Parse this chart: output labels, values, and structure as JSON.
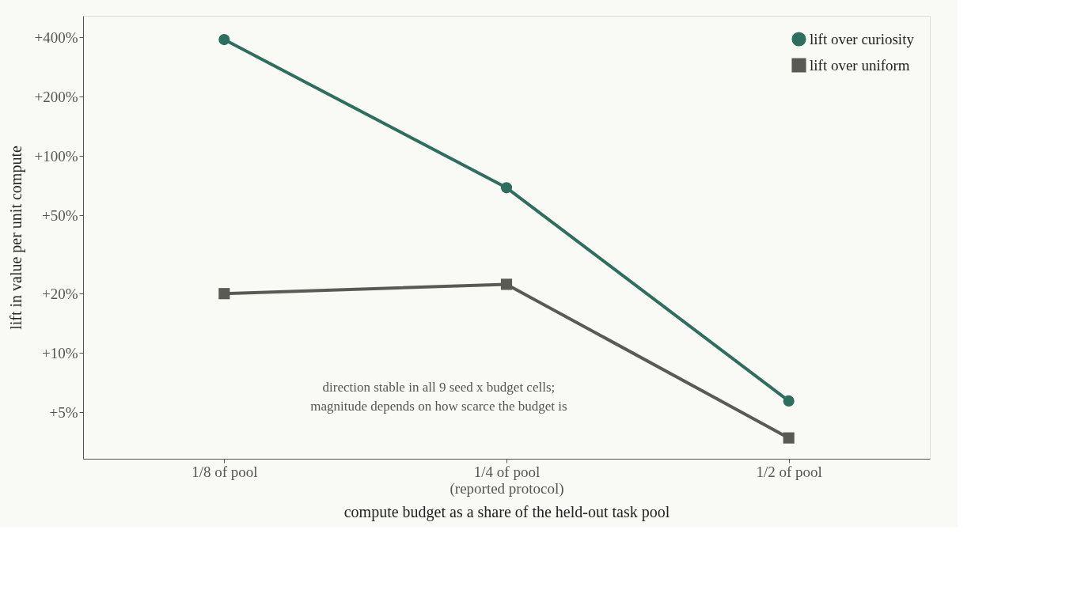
{
  "chart_data": {
    "type": "line",
    "xlabel": "compute budget as a share of the held-out task pool",
    "ylabel": "lift in value per unit compute",
    "categories": [
      "1/8 of pool",
      "1/4 of pool\n(reported protocol)",
      "1/2 of pool"
    ],
    "log": "y",
    "ylim": [
      2.9,
      515
    ],
    "yticks": [
      {
        "value": 5,
        "label": "+5%"
      },
      {
        "value": 10,
        "label": "+10%"
      },
      {
        "value": 20,
        "label": "+20%"
      },
      {
        "value": 50,
        "label": "+50%"
      },
      {
        "value": 100,
        "label": "+100%"
      },
      {
        "value": 200,
        "label": "+200%"
      },
      {
        "value": 400,
        "label": "+400%"
      }
    ],
    "series": [
      {
        "name": "lift over curiosity",
        "color": "#2e6e5e",
        "marker": "circle",
        "values": [
          390,
          69,
          5.7
        ]
      },
      {
        "name": "lift over uniform",
        "color": "#5a5a55",
        "marker": "square",
        "values": [
          20,
          22.3,
          3.7
        ]
      }
    ],
    "annotations": [
      "direction stable in all 9 seed x budget cells;\nmagnitude depends on how scarce the budget is"
    ],
    "grid": false,
    "legend": "top right",
    "line_style": "solid"
  }
}
